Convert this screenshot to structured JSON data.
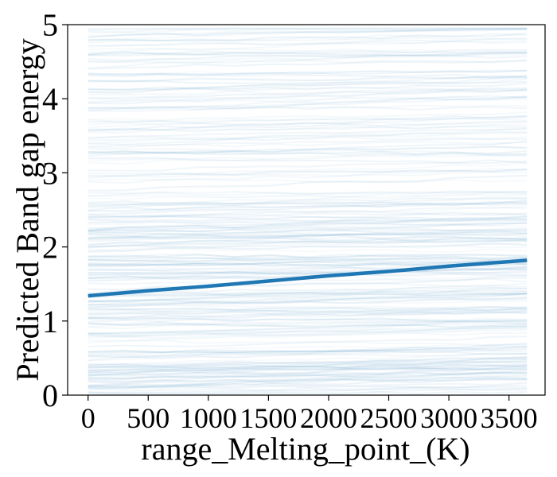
{
  "chart_data": {
    "type": "line",
    "title": "",
    "xlabel": "range_Melting_point_(K)",
    "ylabel": "Predicted Band gap energy",
    "xlim": [
      -170,
      3800
    ],
    "ylim": [
      0,
      5
    ],
    "x_ticks": [
      0,
      500,
      1000,
      1500,
      2000,
      2500,
      3000,
      3500
    ],
    "y_ticks": [
      0,
      1,
      2,
      3,
      4,
      5
    ],
    "grid": false,
    "legend": "none",
    "ice_curves": {
      "description_color": "#1f77b4",
      "x_range": [
        0,
        3650
      ],
      "y_range": [
        0,
        5
      ],
      "shading": "many faint individual conditional expectation curves spanning the full y range, denser below 2.5"
    },
    "series": [
      {
        "x": [
          0,
          500,
          1000,
          1500,
          2000,
          2500,
          3000,
          3650
        ],
        "values": [
          1.34,
          1.41,
          1.47,
          1.54,
          1.61,
          1.67,
          1.74,
          1.82
        ],
        "color": "#1f77b4"
      }
    ]
  }
}
